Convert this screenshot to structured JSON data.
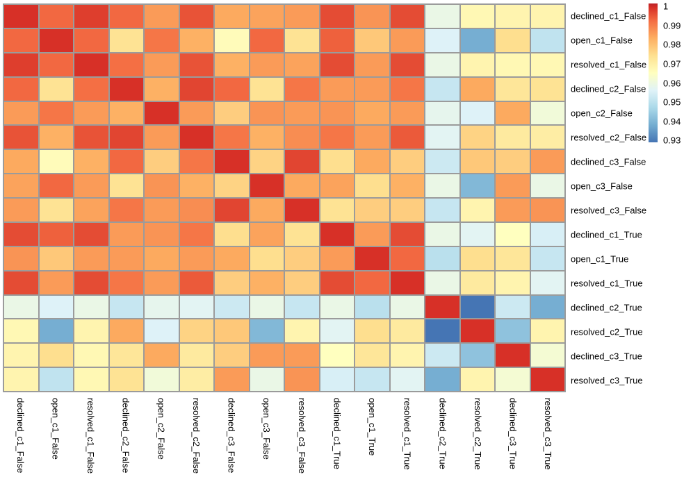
{
  "figure": {
    "background": "#ffffff",
    "grid_line_color": "#9b9b9b"
  },
  "chart_data": {
    "type": "heatmap",
    "title": "",
    "legend_position": "top-right",
    "grid": true,
    "labels": [
      "declined_c1_False",
      "open_c1_False",
      "resolved_c1_False",
      "declined_c2_False",
      "open_c2_False",
      "resolved_c2_False",
      "declined_c3_False",
      "open_c3_False",
      "resolved_c3_False",
      "declined_c1_True",
      "open_c1_True",
      "resolved_c1_True",
      "declined_c2_True",
      "resolved_c2_True",
      "declined_c3_True",
      "resolved_c3_True"
    ],
    "value_domain": [
      0.93,
      1.0
    ],
    "matrix": [
      [
        1.0,
        0.992,
        0.998,
        0.992,
        0.985,
        0.995,
        0.983,
        0.984,
        0.985,
        0.996,
        0.986,
        0.996,
        0.959,
        0.967,
        0.968,
        0.968
      ],
      [
        0.992,
        1.0,
        0.992,
        0.973,
        0.99,
        0.982,
        0.966,
        0.992,
        0.973,
        0.993,
        0.978,
        0.985,
        0.956,
        0.939,
        0.974,
        0.951
      ],
      [
        0.998,
        0.992,
        1.0,
        0.991,
        0.985,
        0.995,
        0.982,
        0.985,
        0.984,
        0.996,
        0.985,
        0.996,
        0.959,
        0.968,
        0.967,
        0.967
      ],
      [
        0.992,
        0.973,
        0.991,
        1.0,
        0.982,
        0.997,
        0.992,
        0.973,
        0.99,
        0.985,
        0.985,
        0.99,
        0.952,
        0.983,
        0.972,
        0.973
      ],
      [
        0.985,
        0.99,
        0.985,
        0.982,
        1.0,
        0.985,
        0.977,
        0.986,
        0.985,
        0.986,
        0.983,
        0.985,
        0.958,
        0.956,
        0.983,
        0.961
      ],
      [
        0.995,
        0.982,
        0.995,
        0.997,
        0.985,
        1.0,
        0.99,
        0.982,
        0.987,
        0.99,
        0.985,
        0.994,
        0.957,
        0.976,
        0.971,
        0.97
      ],
      [
        0.983,
        0.966,
        0.982,
        0.992,
        0.977,
        0.99,
        1.0,
        0.976,
        0.997,
        0.974,
        0.983,
        0.977,
        0.953,
        0.978,
        0.977,
        0.985
      ],
      [
        0.984,
        0.992,
        0.985,
        0.973,
        0.986,
        0.982,
        0.976,
        1.0,
        0.983,
        0.984,
        0.974,
        0.982,
        0.959,
        0.941,
        0.985,
        0.959
      ],
      [
        0.985,
        0.973,
        0.984,
        0.99,
        0.985,
        0.987,
        0.997,
        0.983,
        1.0,
        0.973,
        0.977,
        0.977,
        0.952,
        0.968,
        0.985,
        0.986
      ],
      [
        0.996,
        0.993,
        0.996,
        0.985,
        0.986,
        0.99,
        0.974,
        0.984,
        0.973,
        1.0,
        0.985,
        0.996,
        0.959,
        0.957,
        0.965,
        0.955
      ],
      [
        0.986,
        0.978,
        0.985,
        0.985,
        0.983,
        0.985,
        0.983,
        0.974,
        0.977,
        0.985,
        1.0,
        0.992,
        0.95,
        0.974,
        0.972,
        0.952
      ],
      [
        0.996,
        0.985,
        0.996,
        0.99,
        0.985,
        0.994,
        0.977,
        0.982,
        0.977,
        0.996,
        0.992,
        1.0,
        0.959,
        0.971,
        0.968,
        0.957
      ],
      [
        0.959,
        0.956,
        0.959,
        0.952,
        0.958,
        0.957,
        0.953,
        0.959,
        0.952,
        0.959,
        0.95,
        0.959,
        1.0,
        0.93,
        0.953,
        0.939
      ],
      [
        0.967,
        0.939,
        0.968,
        0.983,
        0.956,
        0.976,
        0.978,
        0.941,
        0.968,
        0.957,
        0.974,
        0.971,
        0.93,
        1.0,
        0.943,
        0.968
      ],
      [
        0.968,
        0.974,
        0.967,
        0.972,
        0.983,
        0.971,
        0.977,
        0.985,
        0.985,
        0.965,
        0.972,
        0.968,
        0.953,
        0.943,
        1.0,
        0.962
      ],
      [
        0.968,
        0.951,
        0.967,
        0.973,
        0.961,
        0.97,
        0.985,
        0.959,
        0.986,
        0.955,
        0.952,
        0.957,
        0.939,
        0.968,
        0.962,
        1.0
      ]
    ],
    "colormap": {
      "name": "RdYlBu_r",
      "stops": [
        {
          "t": 0.0,
          "color": "#4575b4"
        },
        {
          "t": 0.125,
          "color": "#74add1"
        },
        {
          "t": 0.25,
          "color": "#abd9e9"
        },
        {
          "t": 0.375,
          "color": "#e0f3f8"
        },
        {
          "t": 0.5,
          "color": "#ffffbf"
        },
        {
          "t": 0.625,
          "color": "#fee090"
        },
        {
          "t": 0.75,
          "color": "#fdae61"
        },
        {
          "t": 0.875,
          "color": "#f46d43"
        },
        {
          "t": 1.0,
          "color": "#d73027"
        }
      ]
    },
    "colorbar": {
      "tick_labels": [
        "1",
        "0.99",
        "0.98",
        "0.97",
        "0.96",
        "0.95",
        "0.94",
        "0.93"
      ],
      "top_cap_color": "#bb2228"
    }
  }
}
